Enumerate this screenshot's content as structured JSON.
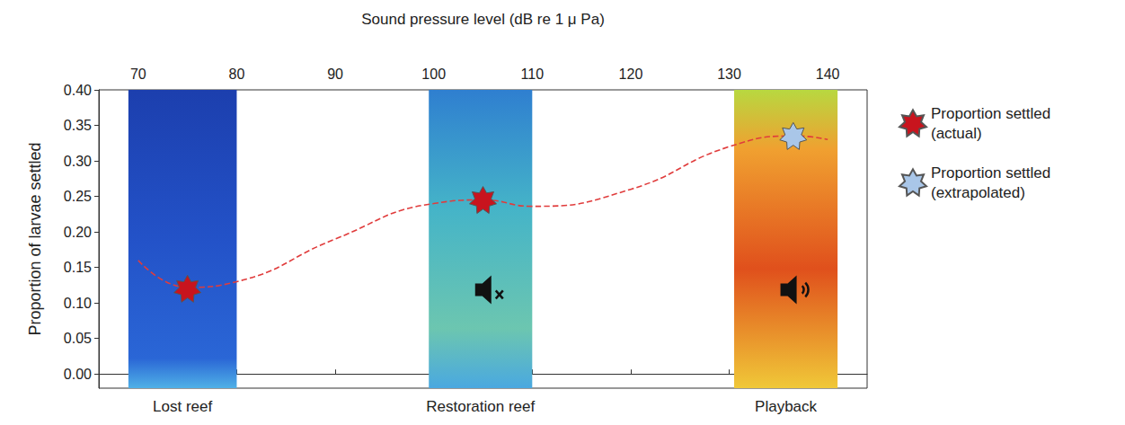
{
  "chart_data": {
    "type": "scatter",
    "x_label": "Sound pressure level (dB re 1 μ Pa)",
    "y_label": "Proportion of larvae settled",
    "xlim": [
      66,
      144
    ],
    "xticks": [
      70,
      80,
      90,
      100,
      110,
      120,
      130,
      140
    ],
    "ylim": [
      -0.02,
      0.4
    ],
    "yticks": [
      {
        "value": 0,
        "label": "0.00"
      },
      {
        "value": 0.05,
        "label": "0.05"
      },
      {
        "value": 0.1,
        "label": "0.10"
      },
      {
        "value": 0.15,
        "label": "0.15"
      },
      {
        "value": 0.2,
        "label": "0.20"
      },
      {
        "value": 0.25,
        "label": "0.25"
      },
      {
        "value": 0.3,
        "label": "0.30"
      },
      {
        "value": 0.35,
        "label": "0.35"
      },
      {
        "value": 0.4,
        "label": "0.40"
      }
    ],
    "grid": false,
    "legend": "right",
    "series": [
      {
        "name": "Proportion settled (actual)",
        "type": "scatter",
        "color": "#c8141e",
        "marker": "star",
        "x": [
          75,
          105
        ],
        "values": [
          0.12,
          0.245
        ]
      },
      {
        "name": "Proportion settled (extrapolated)",
        "type": "scatter",
        "color": "#a9c6e8",
        "marker": "star",
        "x": [
          136.5
        ],
        "values": [
          0.335
        ]
      },
      {
        "type": "line",
        "color": "#e03c3c",
        "line_style": "dashed",
        "x": [
          70,
          75,
          80,
          90,
          100,
          105,
          110,
          120,
          130,
          137,
          140
        ],
        "values": [
          0.16,
          0.122,
          0.13,
          0.19,
          0.24,
          0.245,
          0.236,
          0.26,
          0.32,
          0.335,
          0.33
        ]
      }
    ],
    "annotations": [
      {
        "text": "Lost reef",
        "xrange": [
          69,
          80
        ]
      },
      {
        "text": "Restoration reef",
        "xrange": [
          99.5,
          110
        ]
      },
      {
        "text": "Playback",
        "xrange": [
          130.5,
          141
        ]
      }
    ]
  }
}
